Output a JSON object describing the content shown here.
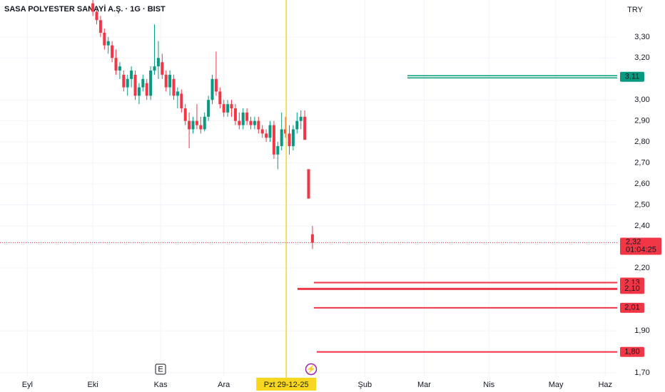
{
  "chart_data": {
    "type": "candlestick",
    "title": "SASA POLYESTER SANAYİ A.Ş. · 1G · BIST",
    "currency": "TRY",
    "up_color": "#089981",
    "down_color": "#f23645",
    "ohlc": [
      [
        3.46,
        3.48,
        3.4,
        3.42
      ],
      [
        3.42,
        3.44,
        3.36,
        3.38
      ],
      [
        3.38,
        3.4,
        3.3,
        3.32
      ],
      [
        3.32,
        3.34,
        3.24,
        3.26
      ],
      [
        3.26,
        3.3,
        3.22,
        3.28
      ],
      [
        3.26,
        3.28,
        3.18,
        3.2
      ],
      [
        3.2,
        3.24,
        3.12,
        3.14
      ],
      [
        3.14,
        3.18,
        3.1,
        3.16
      ],
      [
        3.12,
        3.14,
        3.04,
        3.06
      ],
      [
        3.06,
        3.12,
        3.02,
        3.1
      ],
      [
        3.1,
        3.16,
        3.06,
        3.14
      ],
      [
        3.12,
        3.14,
        3.0,
        3.02
      ],
      [
        3.02,
        3.08,
        2.98,
        3.06
      ],
      [
        3.06,
        3.12,
        3.04,
        3.1
      ],
      [
        3.08,
        3.1,
        3.0,
        3.02
      ],
      [
        3.02,
        3.16,
        3.0,
        3.14
      ],
      [
        3.14,
        3.36,
        3.12,
        3.16
      ],
      [
        3.16,
        3.28,
        3.1,
        3.2
      ],
      [
        3.18,
        3.22,
        3.1,
        3.12
      ],
      [
        3.12,
        3.14,
        3.04,
        3.06
      ],
      [
        3.06,
        3.14,
        3.02,
        3.12
      ],
      [
        3.1,
        3.12,
        3.0,
        3.02
      ],
      [
        3.02,
        3.06,
        2.96,
        3.04
      ],
      [
        3.03,
        3.05,
        2.94,
        2.96
      ],
      [
        2.96,
        2.98,
        2.88,
        2.9
      ],
      [
        2.9,
        2.94,
        2.77,
        2.86
      ],
      [
        2.86,
        2.92,
        2.84,
        2.9
      ],
      [
        2.9,
        2.98,
        2.86,
        2.88
      ],
      [
        2.88,
        2.92,
        2.84,
        2.86
      ],
      [
        2.86,
        2.94,
        2.85,
        2.92
      ],
      [
        2.92,
        3.02,
        2.9,
        3.0
      ],
      [
        3.0,
        3.12,
        2.98,
        3.1
      ],
      [
        3.1,
        3.23,
        3.02,
        3.04
      ],
      [
        3.04,
        3.06,
        2.96,
        2.98
      ],
      [
        2.98,
        3.0,
        2.92,
        2.94
      ],
      [
        2.94,
        3.0,
        2.92,
        2.98
      ],
      [
        2.98,
        3.0,
        2.92,
        2.96
      ],
      [
        2.96,
        2.98,
        2.88,
        2.9
      ],
      [
        2.9,
        2.94,
        2.86,
        2.88
      ],
      [
        2.88,
        2.96,
        2.86,
        2.94
      ],
      [
        2.94,
        2.96,
        2.88,
        2.9
      ],
      [
        2.9,
        2.92,
        2.86,
        2.88
      ],
      [
        2.88,
        2.92,
        2.86,
        2.9
      ],
      [
        2.9,
        2.92,
        2.84,
        2.86
      ],
      [
        2.86,
        2.88,
        2.82,
        2.84
      ],
      [
        2.84,
        2.86,
        2.8,
        2.82
      ],
      [
        2.82,
        2.9,
        2.8,
        2.88
      ],
      [
        2.88,
        2.9,
        2.72,
        2.74
      ],
      [
        2.74,
        2.8,
        2.67,
        2.78
      ],
      [
        2.78,
        2.94,
        2.76,
        2.86
      ],
      [
        2.86,
        2.92,
        2.82,
        2.84
      ],
      [
        2.84,
        2.88,
        2.74,
        2.78
      ],
      [
        2.78,
        2.88,
        2.76,
        2.86
      ],
      [
        2.86,
        2.94,
        2.84,
        2.9
      ],
      [
        2.9,
        2.95,
        2.86,
        2.92
      ],
      [
        2.92,
        2.95,
        2.81,
        2.81
      ],
      [
        2.67,
        2.67,
        2.53,
        2.53
      ],
      [
        2.36,
        2.4,
        2.29,
        2.32
      ]
    ],
    "xlim": [
      -24.1,
      136.1
    ],
    "xticks": [
      {
        "value": -17,
        "label": "Eyl"
      },
      {
        "value": 0,
        "label": "Eki"
      },
      {
        "value": 17.6,
        "label": "Kas"
      },
      {
        "value": 34,
        "label": "Ara"
      },
      {
        "value": 70.6,
        "label": "Şub"
      },
      {
        "value": 86,
        "label": "Mar"
      },
      {
        "value": 102.8,
        "label": "Nis"
      },
      {
        "value": 120.2,
        "label": "May"
      },
      {
        "value": 133,
        "label": "Haz"
      }
    ],
    "crosshair": {
      "value": 50.2,
      "label": "Pzt 29-12-25"
    },
    "ylim": [
      1.653,
      3.476
    ],
    "yticks": [
      {
        "value": 3.3,
        "label": "3,30"
      },
      {
        "value": 3.2,
        "label": "3,20"
      },
      {
        "value": 3.0,
        "label": "3,00"
      },
      {
        "value": 2.9,
        "label": "2,90"
      },
      {
        "value": 2.8,
        "label": "2,80"
      },
      {
        "value": 2.7,
        "label": "2,70"
      },
      {
        "value": 2.6,
        "label": "2,60"
      },
      {
        "value": 2.5,
        "label": "2,50"
      },
      {
        "value": 2.4,
        "label": "2,40"
      },
      {
        "value": 2.2,
        "label": "2,20"
      },
      {
        "value": 1.9,
        "label": "1,90"
      },
      {
        "value": 1.7,
        "label": "1,70"
      }
    ],
    "grid": true,
    "last_price": {
      "value": 2.32,
      "label": "2,32",
      "countdown": "01:04:25"
    },
    "levels": [
      {
        "value": 3.11,
        "label": "3,11",
        "color": "#089981"
      },
      {
        "value": 2.13,
        "label": "2,13",
        "color": "#f23645"
      },
      {
        "value": 2.1,
        "label": "2,10",
        "color": "#f23645"
      },
      {
        "value": 2.01,
        "label": "2,01",
        "color": "#f23645"
      },
      {
        "value": 1.8,
        "label": "1,80",
        "color": "#f23645"
      }
    ],
    "markers": {
      "earnings": "E",
      "event": "⚡"
    }
  }
}
